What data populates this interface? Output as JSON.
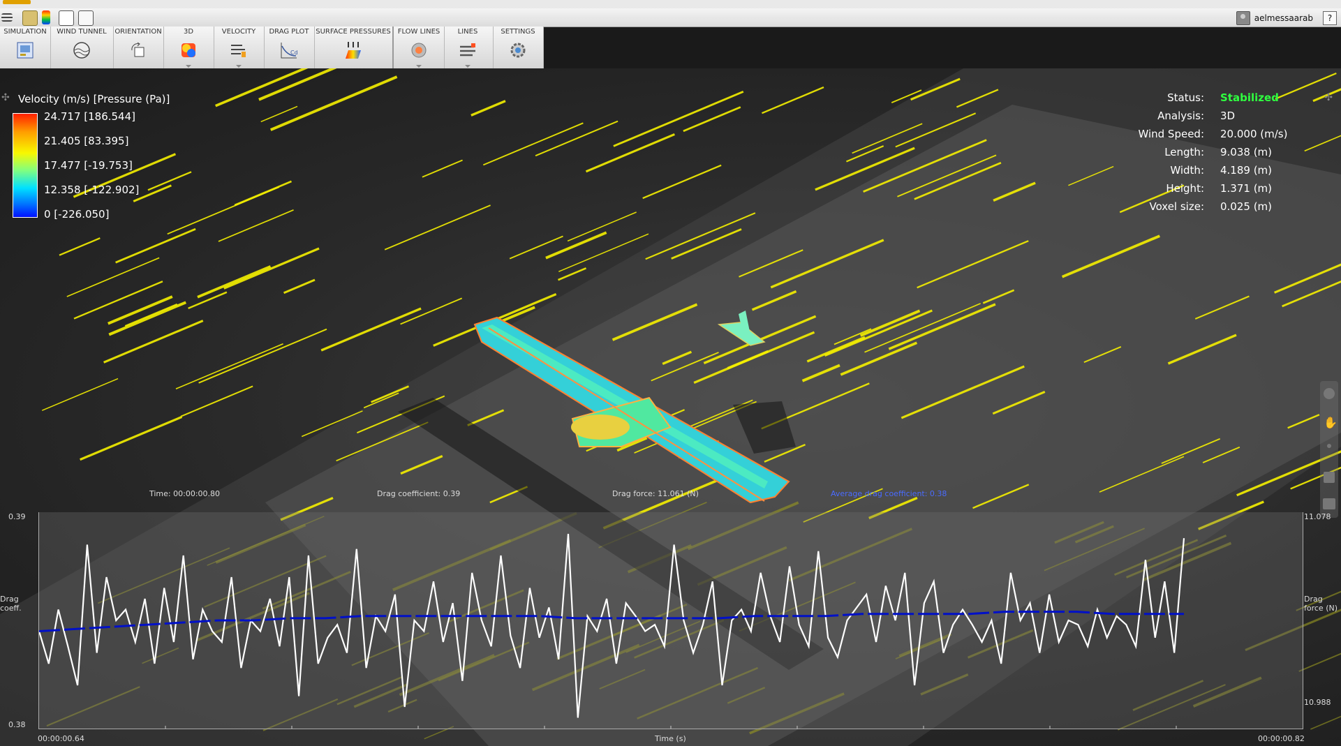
{
  "window": {
    "user": "aelmessaarab",
    "help": "?"
  },
  "ribbon": {
    "tabs": [
      {
        "label": "SIMULATION",
        "icon": "simulation-icon"
      },
      {
        "label": "WIND TUNNEL",
        "icon": "wind-tunnel-icon"
      },
      {
        "label": "ORIENTATION",
        "icon": "orientation-icon"
      },
      {
        "label": "3D",
        "icon": "3d-icon"
      },
      {
        "label": "VELOCITY",
        "icon": "velocity-icon"
      },
      {
        "label": "DRAG PLOT",
        "icon": "drag-plot-icon"
      },
      {
        "label": "SURFACE PRESSURES",
        "icon": "surface-pressures-icon"
      },
      {
        "label": "FLOW LINES",
        "icon": "flow-lines-icon"
      },
      {
        "label": "LINES",
        "icon": "lines-icon"
      },
      {
        "label": "SETTINGS",
        "icon": "settings-icon"
      }
    ]
  },
  "legend": {
    "title": "Velocity (m/s) [Pressure (Pa)]",
    "values": [
      "24.717 [186.544]",
      "21.405 [83.395]",
      "17.477 [-19.753]",
      "12.358 [-122.902]",
      "0 [-226.050]"
    ]
  },
  "stats": {
    "rows": [
      {
        "key": "Status:",
        "value": "Stabilized"
      },
      {
        "key": "Analysis:",
        "value": "3D"
      },
      {
        "key": "Wind Speed:",
        "value": "20.000 (m/s)"
      },
      {
        "key": "Length:",
        "value": "9.038 (m)"
      },
      {
        "key": "Width:",
        "value": "4.189 (m)"
      },
      {
        "key": "Height:",
        "value": "1.371 (m)"
      },
      {
        "key": "Voxel size:",
        "value": "0.025 (m)"
      }
    ]
  },
  "chart_header": {
    "time": "Time: 00:00:00.80",
    "drag_coefficient": "Drag coefficient: 0.39",
    "drag_force": "Drag force: 11.061 (N)",
    "avg_drag": "Average drag coefficient: 0.38"
  },
  "chart_data": {
    "type": "line",
    "xlabel": "Time (s)",
    "x_start": "00:00:00.64",
    "x_end": "00:00:00.82",
    "y_left_label": "Drag coeff.",
    "y_right_label": "Drag force (N)",
    "y_left_range": [
      "0.38",
      "0.39"
    ],
    "y_right_range": [
      "10.988",
      "11.078"
    ],
    "series": [
      {
        "name": "Drag coefficient",
        "color": "#ffffff",
        "values": [
          0.3845,
          0.383,
          0.3855,
          0.3838,
          0.382,
          0.3885,
          0.3835,
          0.387,
          0.385,
          0.3855,
          0.384,
          0.386,
          0.383,
          0.3865,
          0.384,
          0.388,
          0.3832,
          0.3855,
          0.3845,
          0.384,
          0.387,
          0.3828,
          0.385,
          0.3845,
          0.386,
          0.3838,
          0.387,
          0.3815,
          0.388,
          0.383,
          0.3842,
          0.3848,
          0.3835,
          0.3883,
          0.3828,
          0.3852,
          0.3845,
          0.3862,
          0.381,
          0.385,
          0.3845,
          0.3868,
          0.384,
          0.3858,
          0.3822,
          0.3872,
          0.385,
          0.3838,
          0.388,
          0.3843,
          0.3828,
          0.3865,
          0.3842,
          0.3856,
          0.3832,
          0.389,
          0.3805,
          0.3852,
          0.3845,
          0.386,
          0.383,
          0.3858,
          0.3852,
          0.3845,
          0.3848,
          0.3838,
          0.3885,
          0.385,
          0.3835,
          0.3848,
          0.3868,
          0.382,
          0.385,
          0.3855,
          0.3845,
          0.3872,
          0.3852,
          0.384,
          0.3875,
          0.3848,
          0.3838,
          0.3882,
          0.3842,
          0.3833,
          0.385,
          0.3856,
          0.3862,
          0.384,
          0.3866,
          0.385,
          0.3872,
          0.382,
          0.3858,
          0.3868,
          0.3835,
          0.3848,
          0.3855,
          0.3848,
          0.384,
          0.385,
          0.383,
          0.3872,
          0.385,
          0.3858,
          0.3835,
          0.3862,
          0.384,
          0.385,
          0.3848,
          0.3838,
          0.3855,
          0.3842,
          0.3852,
          0.3848,
          0.3838,
          0.3878,
          0.3842,
          0.3868,
          0.3835,
          0.3888
        ]
      },
      {
        "name": "Average drag coefficient",
        "color": "#0010c8",
        "values": [
          0.3845,
          0.3846,
          0.3847,
          0.3848,
          0.3849,
          0.385,
          0.385,
          0.3851,
          0.3851,
          0.3852,
          0.3852,
          0.3852,
          0.3852,
          0.3852,
          0.3852,
          0.3851,
          0.3851,
          0.3851,
          0.3851,
          0.3851,
          0.3852,
          0.3852,
          0.3852,
          0.3853,
          0.3853,
          0.3853,
          0.3853,
          0.3854,
          0.3854,
          0.3854,
          0.3853,
          0.3853,
          0.3853
        ]
      }
    ]
  }
}
